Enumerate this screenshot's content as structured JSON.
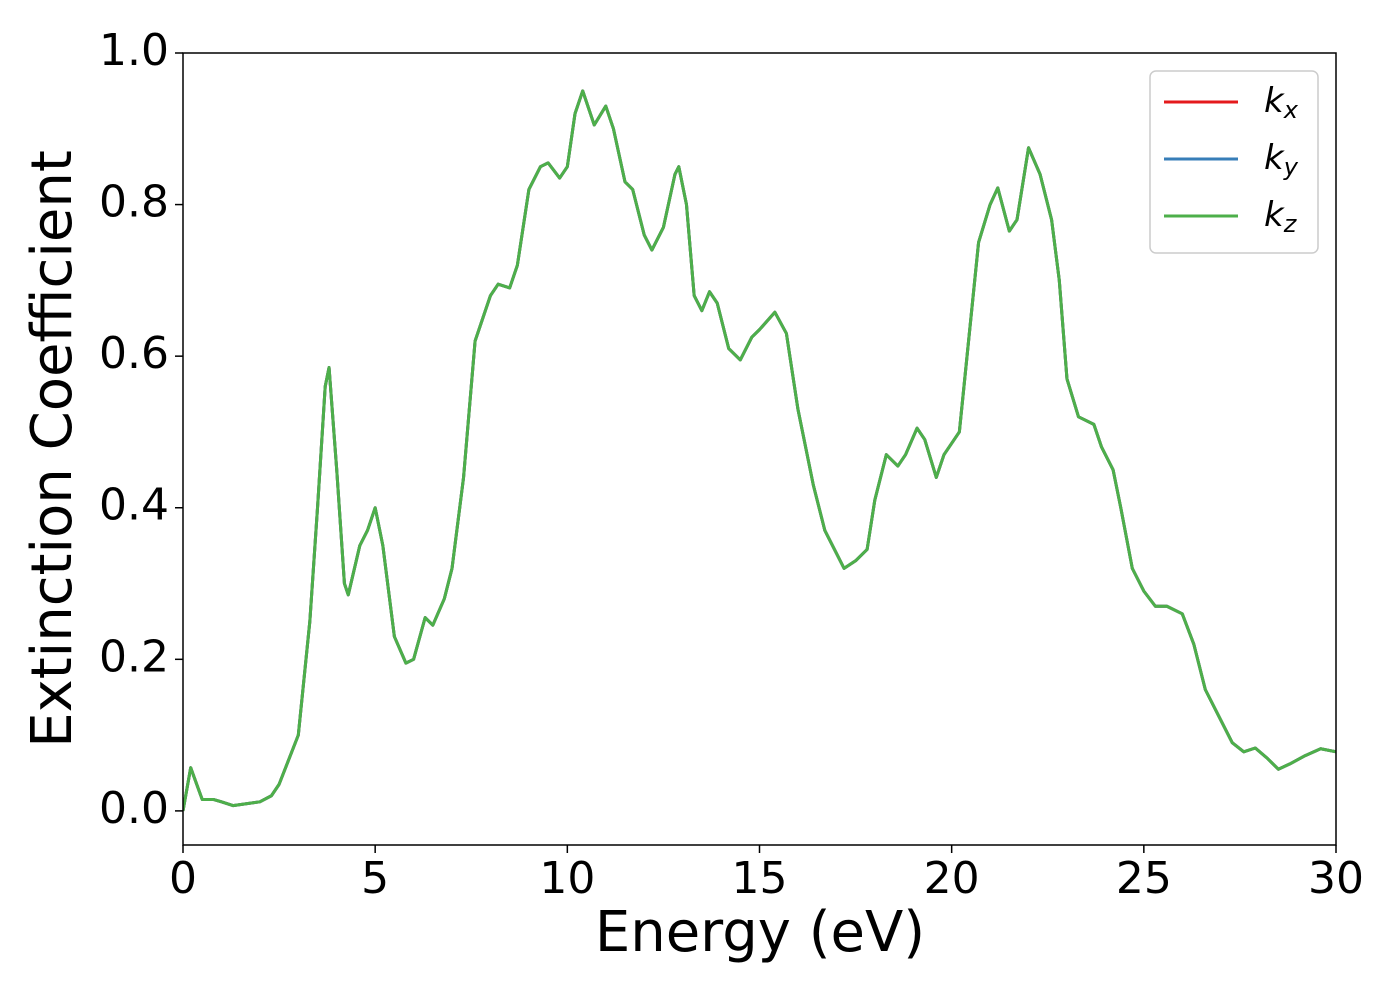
{
  "chart_data": {
    "type": "line",
    "xlabel": "Energy (eV)",
    "ylabel": "Extinction Coefficient",
    "x": [
      0,
      0.2,
      0.5,
      0.8,
      1.0,
      1.3,
      2.0,
      2.3,
      2.5,
      3.0,
      3.3,
      3.5,
      3.7,
      3.8,
      4.0,
      4.2,
      4.3,
      4.6,
      4.8,
      5.0,
      5.2,
      5.5,
      5.8,
      6.0,
      6.3,
      6.5,
      6.8,
      7.0,
      7.3,
      7.6,
      7.8,
      8.0,
      8.2,
      8.5,
      8.7,
      9.0,
      9.3,
      9.5,
      9.8,
      10.0,
      10.2,
      10.4,
      10.7,
      11.0,
      11.2,
      11.5,
      11.7,
      12.0,
      12.2,
      12.5,
      12.8,
      12.9,
      13.1,
      13.3,
      13.5,
      13.7,
      13.9,
      14.2,
      14.5,
      14.8,
      15.0,
      15.4,
      15.7,
      16.0,
      16.4,
      16.7,
      17.0,
      17.2,
      17.5,
      17.8,
      18.0,
      18.3,
      18.6,
      18.8,
      19.1,
      19.3,
      19.6,
      19.8,
      20.2,
      20.4,
      20.7,
      21.0,
      21.2,
      21.5,
      21.7,
      22.0,
      22.3,
      22.6,
      22.8,
      23.0,
      23.3,
      23.7,
      23.9,
      24.2,
      24.4,
      24.7,
      25.0,
      25.3,
      25.6,
      26.0,
      26.3,
      26.6,
      27.0,
      27.3,
      27.6,
      27.9,
      28.2,
      28.5,
      28.8,
      29.2,
      29.6,
      30.0
    ],
    "series": [
      {
        "name": "kx",
        "color": "#e41a1c",
        "values": [
          0,
          0.057,
          0.015,
          0.015,
          0.012,
          0.007,
          0.012,
          0.02,
          0.035,
          0.1,
          0.25,
          0.4,
          0.56,
          0.585,
          0.45,
          0.3,
          0.285,
          0.35,
          0.37,
          0.4,
          0.35,
          0.23,
          0.195,
          0.2,
          0.255,
          0.245,
          0.28,
          0.32,
          0.44,
          0.62,
          0.65,
          0.68,
          0.695,
          0.69,
          0.72,
          0.82,
          0.85,
          0.855,
          0.835,
          0.85,
          0.92,
          0.95,
          0.905,
          0.93,
          0.9,
          0.83,
          0.82,
          0.76,
          0.74,
          0.77,
          0.84,
          0.85,
          0.8,
          0.68,
          0.66,
          0.685,
          0.67,
          0.61,
          0.595,
          0.625,
          0.635,
          0.658,
          0.63,
          0.53,
          0.43,
          0.37,
          0.34,
          0.32,
          0.33,
          0.345,
          0.41,
          0.47,
          0.455,
          0.47,
          0.505,
          0.49,
          0.44,
          0.47,
          0.5,
          0.6,
          0.75,
          0.8,
          0.822,
          0.765,
          0.78,
          0.875,
          0.84,
          0.78,
          0.7,
          0.57,
          0.52,
          0.51,
          0.48,
          0.45,
          0.4,
          0.32,
          0.29,
          0.27,
          0.27,
          0.26,
          0.22,
          0.16,
          0.12,
          0.09,
          0.078,
          0.083,
          0.07,
          0.055,
          0.062,
          0.073,
          0.082,
          0.078
        ]
      },
      {
        "name": "ky",
        "color": "#377eb8",
        "values": [
          0,
          0.057,
          0.015,
          0.015,
          0.012,
          0.007,
          0.012,
          0.02,
          0.035,
          0.1,
          0.25,
          0.4,
          0.56,
          0.585,
          0.45,
          0.3,
          0.285,
          0.35,
          0.37,
          0.4,
          0.35,
          0.23,
          0.195,
          0.2,
          0.255,
          0.245,
          0.28,
          0.32,
          0.44,
          0.62,
          0.65,
          0.68,
          0.695,
          0.69,
          0.72,
          0.82,
          0.85,
          0.855,
          0.835,
          0.85,
          0.92,
          0.95,
          0.905,
          0.93,
          0.9,
          0.83,
          0.82,
          0.76,
          0.74,
          0.77,
          0.84,
          0.85,
          0.8,
          0.68,
          0.66,
          0.685,
          0.67,
          0.61,
          0.595,
          0.625,
          0.635,
          0.658,
          0.63,
          0.53,
          0.43,
          0.37,
          0.34,
          0.32,
          0.33,
          0.345,
          0.41,
          0.47,
          0.455,
          0.47,
          0.505,
          0.49,
          0.44,
          0.47,
          0.5,
          0.6,
          0.75,
          0.8,
          0.822,
          0.765,
          0.78,
          0.875,
          0.84,
          0.78,
          0.7,
          0.57,
          0.52,
          0.51,
          0.48,
          0.45,
          0.4,
          0.32,
          0.29,
          0.27,
          0.27,
          0.26,
          0.22,
          0.16,
          0.12,
          0.09,
          0.078,
          0.083,
          0.07,
          0.055,
          0.062,
          0.073,
          0.082,
          0.078
        ]
      },
      {
        "name": "kz",
        "color": "#4daf4a",
        "values": [
          0,
          0.057,
          0.015,
          0.015,
          0.012,
          0.007,
          0.012,
          0.02,
          0.035,
          0.1,
          0.25,
          0.4,
          0.56,
          0.585,
          0.45,
          0.3,
          0.285,
          0.35,
          0.37,
          0.4,
          0.35,
          0.23,
          0.195,
          0.2,
          0.255,
          0.245,
          0.28,
          0.32,
          0.44,
          0.62,
          0.65,
          0.68,
          0.695,
          0.69,
          0.72,
          0.82,
          0.85,
          0.855,
          0.835,
          0.85,
          0.92,
          0.95,
          0.905,
          0.93,
          0.9,
          0.83,
          0.82,
          0.76,
          0.74,
          0.77,
          0.84,
          0.85,
          0.8,
          0.68,
          0.66,
          0.685,
          0.67,
          0.61,
          0.595,
          0.625,
          0.635,
          0.658,
          0.63,
          0.53,
          0.43,
          0.37,
          0.34,
          0.32,
          0.33,
          0.345,
          0.41,
          0.47,
          0.455,
          0.47,
          0.505,
          0.49,
          0.44,
          0.47,
          0.5,
          0.6,
          0.75,
          0.8,
          0.822,
          0.765,
          0.78,
          0.875,
          0.84,
          0.78,
          0.7,
          0.57,
          0.52,
          0.51,
          0.48,
          0.45,
          0.4,
          0.32,
          0.29,
          0.27,
          0.27,
          0.26,
          0.22,
          0.16,
          0.12,
          0.09,
          0.078,
          0.083,
          0.07,
          0.055,
          0.062,
          0.073,
          0.082,
          0.078
        ]
      }
    ],
    "xlim": [
      0,
      30
    ],
    "xticks": [
      0,
      5,
      10,
      15,
      20,
      25,
      30
    ],
    "ylim": [
      -0.045,
      1.0
    ],
    "yticks": [
      {
        "value": 0,
        "label": "0.0"
      },
      0.2,
      0.4,
      0.6,
      0.8,
      {
        "value": 1,
        "label": "1.0"
      }
    ],
    "grid": false,
    "legend": "upper right"
  }
}
